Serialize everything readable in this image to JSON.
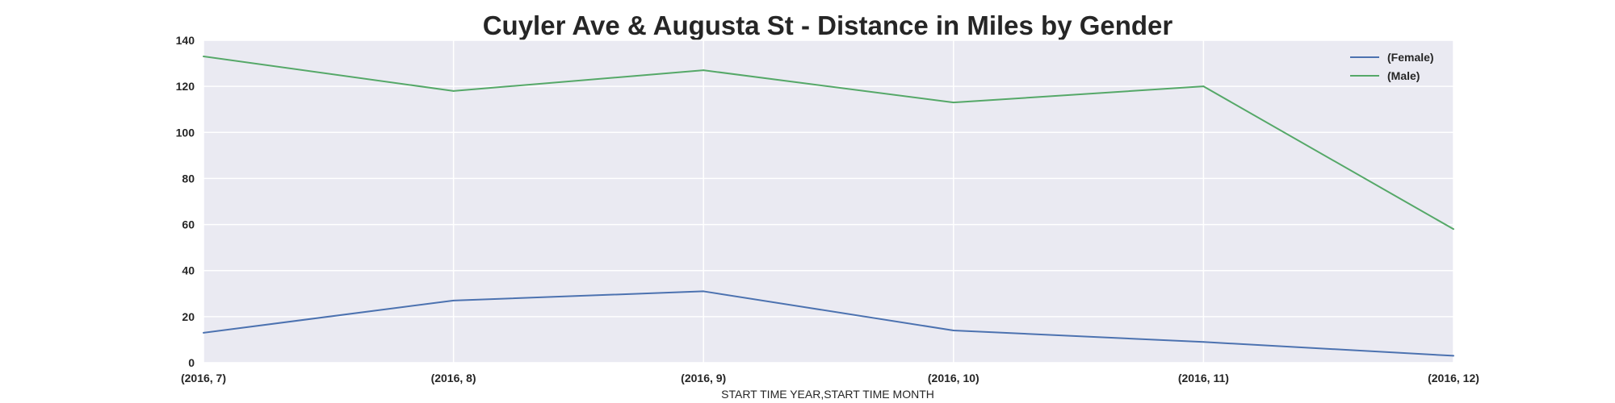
{
  "chart_data": {
    "type": "line",
    "title": "Cuyler Ave & Augusta St - Distance in Miles by Gender",
    "xlabel": "START TIME YEAR,START TIME MONTH",
    "ylabel": "",
    "categories": [
      "(2016, 7)",
      "(2016, 8)",
      "(2016, 9)",
      "(2016, 10)",
      "(2016, 11)",
      "(2016, 12)"
    ],
    "ylim": [
      0,
      140
    ],
    "yticks": [
      0,
      20,
      40,
      60,
      80,
      100,
      120,
      140
    ],
    "grid": true,
    "legend_position": "top-right",
    "series": [
      {
        "name": "(Female)",
        "color": "#4c72b0",
        "values": [
          13,
          27,
          31,
          14,
          9,
          3
        ]
      },
      {
        "name": "(Male)",
        "color": "#55a868",
        "values": [
          133,
          118,
          127,
          113,
          120,
          58
        ]
      }
    ]
  }
}
